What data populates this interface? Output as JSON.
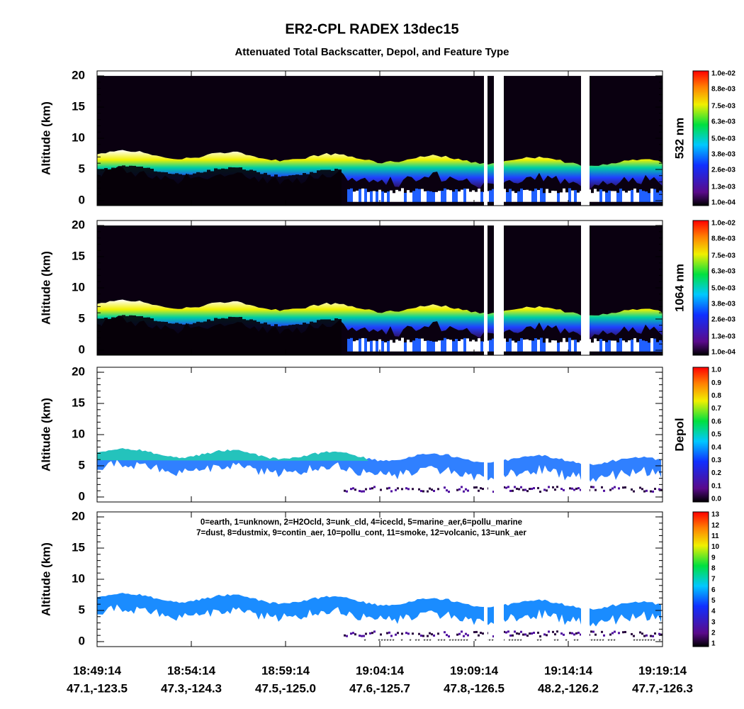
{
  "title": "ER2-CPL RADEX 13dec15",
  "subtitle": "Attenuated Total Backscatter, Depol, and Feature Type",
  "chart_data": [
    {
      "type": "heatmap",
      "ylabel": "Altitude (km)",
      "ylim": [
        -0.8,
        20.8
      ],
      "yticks": [
        0,
        5,
        10,
        15,
        20
      ],
      "colorbar_label": "532 nm",
      "clim": [
        0.0001,
        0.01
      ],
      "cticks": [
        {
          "value": 0.0001,
          "label": "1.0e-04"
        },
        {
          "value": 0.0013,
          "label": "1.3e-03"
        },
        {
          "value": 0.0026,
          "label": "2.6e-03"
        },
        {
          "value": 0.0038,
          "label": "3.8e-03"
        },
        {
          "value": 0.005,
          "label": "5.0e-03"
        },
        {
          "value": 0.0063,
          "label": "6.3e-03"
        },
        {
          "value": 0.0075,
          "label": "7.5e-03"
        },
        {
          "value": 0.0088,
          "label": "8.8e-03"
        },
        {
          "value": 0.01,
          "label": "1.0e-02"
        }
      ]
    },
    {
      "type": "heatmap",
      "ylabel": "Altitude (km)",
      "ylim": [
        -0.8,
        20.8
      ],
      "yticks": [
        0,
        5,
        10,
        15,
        20
      ],
      "colorbar_label": "1064 nm",
      "clim": [
        0.0001,
        0.01
      ],
      "cticks": [
        {
          "value": 0.0001,
          "label": "1.0e-04"
        },
        {
          "value": 0.0013,
          "label": "1.3e-03"
        },
        {
          "value": 0.0026,
          "label": "2.6e-03"
        },
        {
          "value": 0.0038,
          "label": "3.8e-03"
        },
        {
          "value": 0.005,
          "label": "5.0e-03"
        },
        {
          "value": 0.0063,
          "label": "6.3e-03"
        },
        {
          "value": 0.0075,
          "label": "7.5e-03"
        },
        {
          "value": 0.0088,
          "label": "8.8e-03"
        },
        {
          "value": 0.01,
          "label": "1.0e-02"
        }
      ]
    },
    {
      "type": "depol",
      "ylabel": "Altitude (km)",
      "ylim": [
        -0.8,
        20.8
      ],
      "yticks": [
        0,
        5,
        10,
        15,
        20
      ],
      "colorbar_label": "Depol",
      "clim": [
        0,
        1
      ],
      "cticks": [
        {
          "value": 0,
          "label": "0.0"
        },
        {
          "value": 0.1,
          "label": "0.1"
        },
        {
          "value": 0.2,
          "label": "0.2"
        },
        {
          "value": 0.3,
          "label": "0.3"
        },
        {
          "value": 0.4,
          "label": "0.4"
        },
        {
          "value": 0.5,
          "label": "0.5"
        },
        {
          "value": 0.6,
          "label": "0.6"
        },
        {
          "value": 0.7,
          "label": "0.7"
        },
        {
          "value": 0.8,
          "label": "0.8"
        },
        {
          "value": 0.9,
          "label": "0.9"
        },
        {
          "value": 1,
          "label": "1.0"
        }
      ]
    },
    {
      "type": "feature",
      "ylabel": "Altitude (km)",
      "ylim": [
        -0.8,
        20.8
      ],
      "yticks": [
        0,
        5,
        10,
        15,
        20
      ],
      "clim": [
        1,
        13
      ],
      "cticks": [
        1,
        2,
        3,
        4,
        5,
        6,
        7,
        8,
        9,
        10,
        11,
        12,
        13
      ],
      "legend_lines": [
        "0=earth, 1=unknown, 2=H2Ocld, 3=unk_cld, 4=icecld, 5=marine_aer,6=pollu_marine",
        "7=dust, 8=dustmix, 9=contin_aer, 10=pollu_cont, 11=smoke, 12=volcanic, 13=unk_aer"
      ]
    }
  ],
  "x_axis": {
    "ticks": [
      {
        "time": "18:49:14",
        "position": "47.1,-123.5"
      },
      {
        "time": "18:54:14",
        "position": "47.3,-124.3"
      },
      {
        "time": "18:59:14",
        "position": "47.5,-125.0"
      },
      {
        "time": "19:04:14",
        "position": "47.6,-125.7"
      },
      {
        "time": "19:09:14",
        "position": "47.8,-126.5"
      },
      {
        "time": "19:14:14",
        "position": "48.2,-126.2"
      },
      {
        "time": "19:19:14",
        "position": "47.7,-126.3"
      }
    ]
  }
}
